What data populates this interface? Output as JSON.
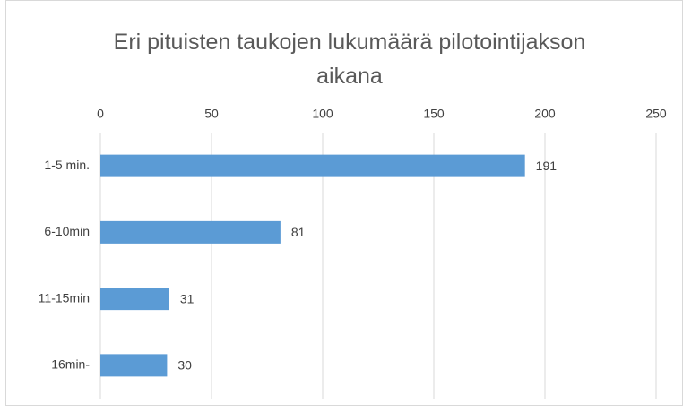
{
  "chart_data": {
    "type": "barh",
    "title": "Eri pituisten taukojen lukumäärä pilotointijakson aikana",
    "categories": [
      "1-5 min.",
      "6-10min",
      "11-15min",
      "16min-"
    ],
    "values": [
      191,
      81,
      31,
      30
    ],
    "color": "#5b9bd5",
    "xlim": [
      0,
      250
    ],
    "xticks": [
      0,
      50,
      100,
      150,
      200,
      250
    ],
    "grid": true
  }
}
